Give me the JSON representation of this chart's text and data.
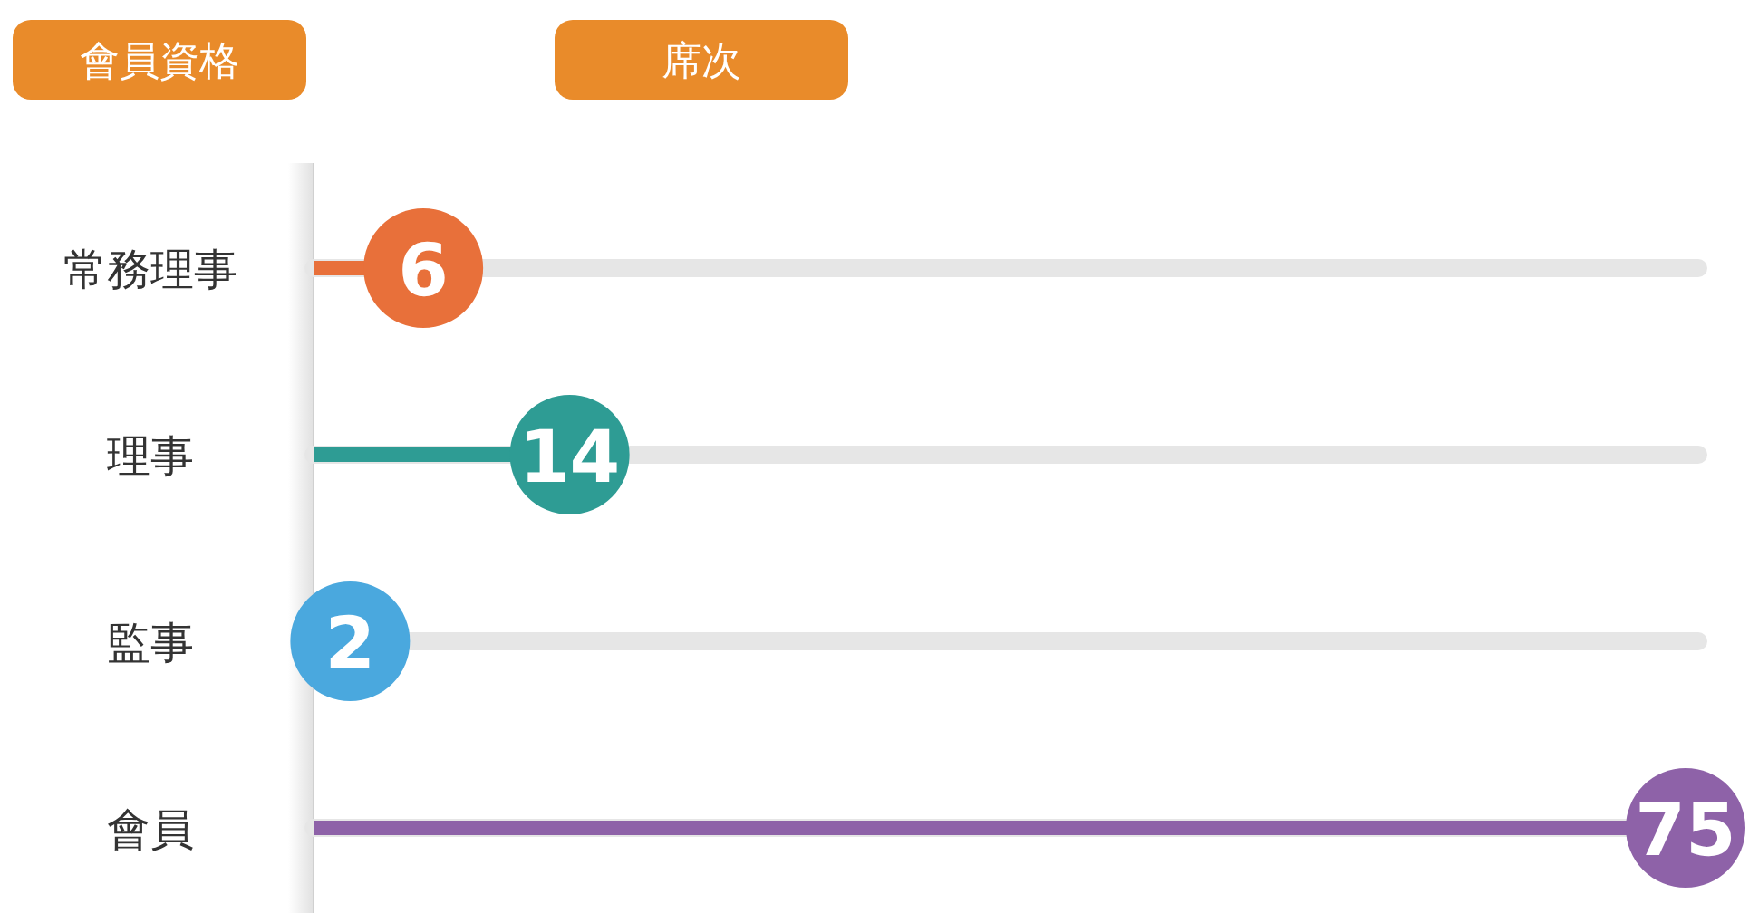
{
  "chart_data": {
    "type": "lollipop",
    "orientation": "horizontal",
    "ylabel": "會員資格",
    "xlabel": "席次",
    "categories": [
      "常務理事",
      "理事",
      "監事",
      "會員"
    ],
    "values": [
      6,
      14,
      2,
      75
    ],
    "colors": [
      "#e8703a",
      "#2e9c94",
      "#4aa8de",
      "#8e62a8"
    ],
    "data_labels": true,
    "grid": "y"
  }
}
